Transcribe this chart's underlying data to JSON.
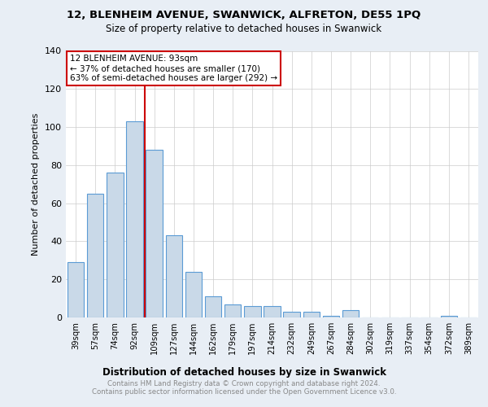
{
  "title1": "12, BLENHEIM AVENUE, SWANWICK, ALFRETON, DE55 1PQ",
  "title2": "Size of property relative to detached houses in Swanwick",
  "xlabel": "Distribution of detached houses by size in Swanwick",
  "ylabel": "Number of detached properties",
  "categories": [
    "39sqm",
    "57sqm",
    "74sqm",
    "92sqm",
    "109sqm",
    "127sqm",
    "144sqm",
    "162sqm",
    "179sqm",
    "197sqm",
    "214sqm",
    "232sqm",
    "249sqm",
    "267sqm",
    "284sqm",
    "302sqm",
    "319sqm",
    "337sqm",
    "354sqm",
    "372sqm",
    "389sqm"
  ],
  "values": [
    29,
    65,
    76,
    103,
    88,
    43,
    24,
    11,
    7,
    6,
    6,
    3,
    3,
    1,
    4,
    0,
    0,
    0,
    0,
    1,
    0
  ],
  "bar_color": "#c9d9e8",
  "bar_edge_color": "#5b9bd5",
  "vline_index": 3,
  "annotation_line1": "12 BLENHEIM AVENUE: 93sqm",
  "annotation_line2": "← 37% of detached houses are smaller (170)",
  "annotation_line3": "63% of semi-detached houses are larger (292) →",
  "vline_color": "#cc0000",
  "annotation_box_edge": "#cc0000",
  "ylim": [
    0,
    140
  ],
  "yticks": [
    0,
    20,
    40,
    60,
    80,
    100,
    120,
    140
  ],
  "footer1": "Contains HM Land Registry data © Crown copyright and database right 2024.",
  "footer2": "Contains public sector information licensed under the Open Government Licence v3.0.",
  "bg_color": "#e8eef5",
  "plot_bg_color": "#ffffff",
  "grid_color": "#cccccc"
}
